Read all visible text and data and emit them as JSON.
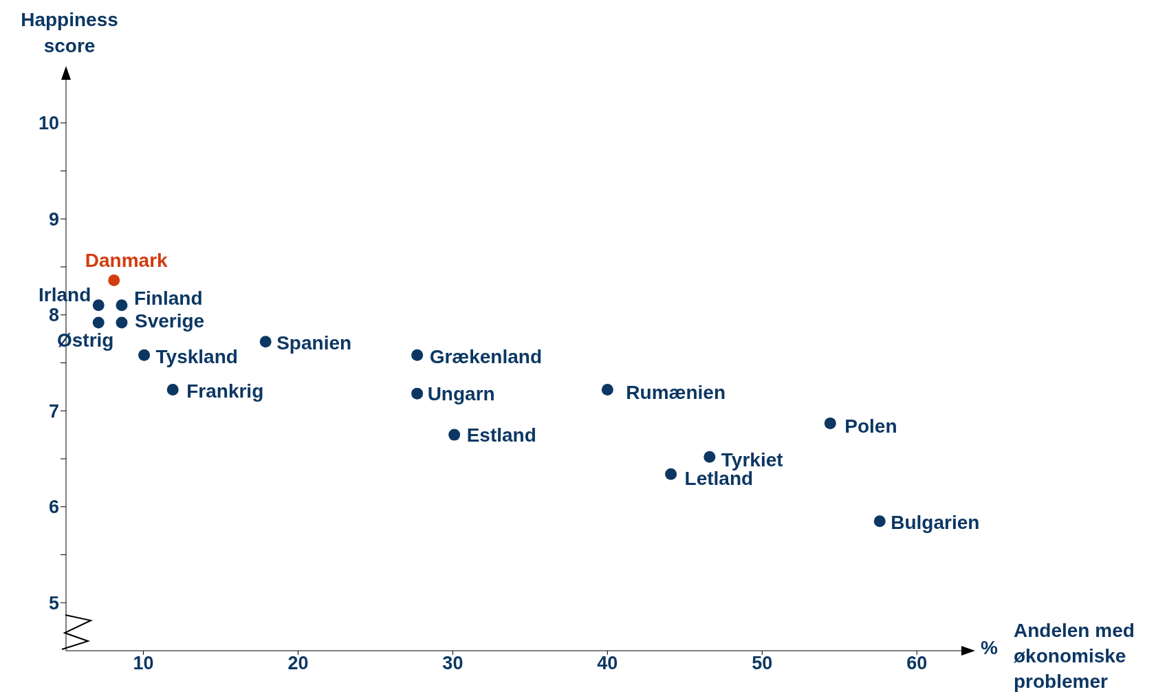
{
  "chart_data": {
    "type": "scatter",
    "xlabel": "Andelen med økonomiske problemer",
    "ylabel": "Happiness score",
    "annotations": [
      "%"
    ],
    "marker": "circle",
    "xlim": [
      5,
      63.5
    ],
    "xticks": [
      10,
      20,
      30,
      40,
      50,
      60
    ],
    "ylim": [
      4.5,
      10.55
    ],
    "yticks": [
      5,
      {
        "value": 5.5,
        "label": null
      },
      6,
      {
        "value": 6.5,
        "label": null
      },
      7,
      {
        "value": 7.5,
        "label": null
      },
      8,
      {
        "value": 8.5,
        "label": null
      },
      9,
      {
        "value": 9.5,
        "label": null
      },
      10
    ],
    "series": [
      {
        "name": "Danmark",
        "color": "#d23c0f",
        "x": [
          8.1
        ],
        "values": [
          8.36
        ]
      },
      {
        "name": "Irland",
        "color": "#0c3763",
        "x": [
          7.1
        ],
        "values": [
          8.1
        ]
      },
      {
        "name": "Finland",
        "color": "#0c3763",
        "x": [
          8.6
        ],
        "values": [
          8.1
        ]
      },
      {
        "name": "Østrig",
        "color": "#0c3763",
        "x": [
          7.1
        ],
        "values": [
          7.92
        ]
      },
      {
        "name": "Sverige",
        "color": "#0c3763",
        "x": [
          8.6
        ],
        "values": [
          7.92
        ]
      },
      {
        "name": "Tyskland",
        "color": "#0c3763",
        "x": [
          10.05
        ],
        "values": [
          7.58
        ]
      },
      {
        "name": "Spanien",
        "color": "#0c3763",
        "x": [
          17.9
        ],
        "values": [
          7.72
        ]
      },
      {
        "name": "Frankrig",
        "color": "#0c3763",
        "x": [
          11.9
        ],
        "values": [
          7.22
        ]
      },
      {
        "name": "Grækenland",
        "color": "#0c3763",
        "x": [
          27.7
        ],
        "values": [
          7.58
        ]
      },
      {
        "name": "Ungarn",
        "color": "#0c3763",
        "x": [
          27.7
        ],
        "values": [
          7.18
        ]
      },
      {
        "name": "Estland",
        "color": "#0c3763",
        "x": [
          30.1
        ],
        "values": [
          6.75
        ]
      },
      {
        "name": "Rumænien",
        "color": "#0c3763",
        "x": [
          40.0
        ],
        "values": [
          7.22
        ]
      },
      {
        "name": "Polen",
        "color": "#0c3763",
        "x": [
          54.4
        ],
        "values": [
          6.87
        ]
      },
      {
        "name": "Tyrkiet",
        "color": "#0c3763",
        "x": [
          46.6
        ],
        "values": [
          6.52
        ]
      },
      {
        "name": "Letland",
        "color": "#0c3763",
        "x": [
          44.1
        ],
        "values": [
          6.34
        ]
      },
      {
        "name": "Bulgarien",
        "color": "#0c3763",
        "x": [
          57.6
        ],
        "values": [
          5.85
        ]
      }
    ]
  }
}
